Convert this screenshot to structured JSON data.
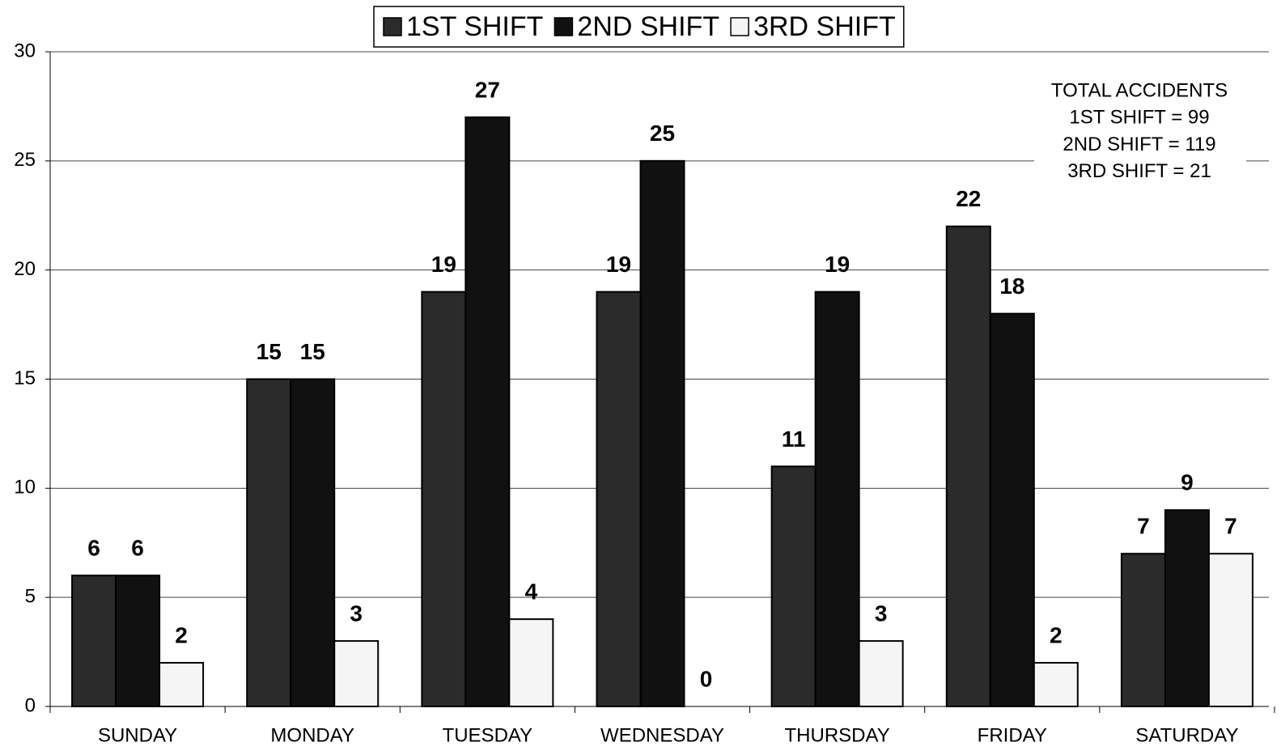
{
  "chart_data": {
    "type": "bar",
    "categories": [
      "SUNDAY",
      "MONDAY",
      "TUESDAY",
      "WEDNESDAY",
      "THURSDAY",
      "FRIDAY",
      "SATURDAY"
    ],
    "series": [
      {
        "name": "1ST SHIFT",
        "color": "#2b2b2b",
        "values": [
          6,
          15,
          19,
          19,
          11,
          22,
          7
        ]
      },
      {
        "name": "2ND SHIFT",
        "color": "#111111",
        "values": [
          6,
          15,
          27,
          25,
          19,
          18,
          9
        ]
      },
      {
        "name": "3RD SHIFT",
        "color": "#f5f5f5",
        "values": [
          2,
          3,
          4,
          0,
          3,
          2,
          7
        ]
      }
    ],
    "ylim": [
      0,
      30
    ],
    "yticks": [
      0,
      5,
      10,
      15,
      20,
      25,
      30
    ],
    "grid": true,
    "legend": "top",
    "annotations": [
      "TOTAL ACCIDENTS",
      "1ST SHIFT = 99",
      "2ND SHIFT = 119",
      "3RD SHIFT = 21"
    ]
  }
}
